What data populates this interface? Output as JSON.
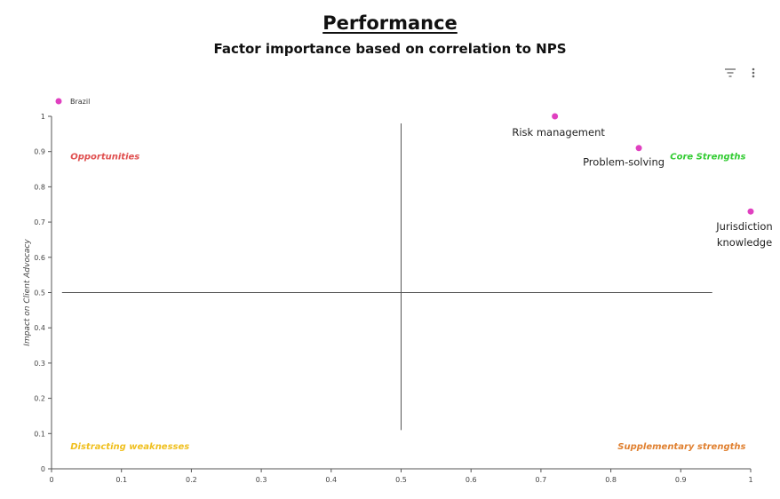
{
  "header": {
    "title": "Performance",
    "subtitle": "Factor importance based on correlation to NPS"
  },
  "toolbar": {
    "filter_icon": "filter-icon",
    "menu_icon": "more-vertical-icon"
  },
  "colors": {
    "point": "#e040c0",
    "opportunities": "#e05050",
    "core_strengths": "#33cc33",
    "distracting_weaknesses": "#f0c020",
    "supplementary_strengths": "#e08030",
    "axis": "#555555",
    "divider": "#555555"
  },
  "chart_data": {
    "type": "scatter",
    "title": "Performance",
    "subtitle": "Factor importance based on correlation to NPS",
    "xlabel": "",
    "ylabel": "Impact on Client Advocacy",
    "xlim": [
      0,
      1
    ],
    "ylim": [
      0,
      1
    ],
    "xticks": [
      "0",
      "0.1",
      "0.2",
      "0.3",
      "0.4",
      "0.5",
      "0.6",
      "0.7",
      "0.8",
      "0.9",
      "1"
    ],
    "yticks": [
      "0",
      "0.1",
      "0.2",
      "0.3",
      "0.4",
      "0.5",
      "0.6",
      "0.7",
      "0.8",
      "0.9",
      "1"
    ],
    "grid": false,
    "legend": {
      "position": "top-left",
      "entries": [
        {
          "name": "Brazil"
        }
      ]
    },
    "series": [
      {
        "name": "Brazil",
        "points": [
          {
            "label": "Risk management",
            "x": 0.72,
            "y": 1.0
          },
          {
            "label": "Problem-solving",
            "x": 0.84,
            "y": 0.91
          },
          {
            "label": "Jurisdiction knowledge",
            "x": 1.0,
            "y": 0.73
          }
        ]
      }
    ],
    "dividers": {
      "x": 0.5,
      "y": 0.5
    },
    "quadrants": {
      "top_left": "Opportunities",
      "top_right": "Core Strengths",
      "bottom_left": "Distracting weaknesses",
      "bottom_right": "Supplementary strengths"
    }
  }
}
